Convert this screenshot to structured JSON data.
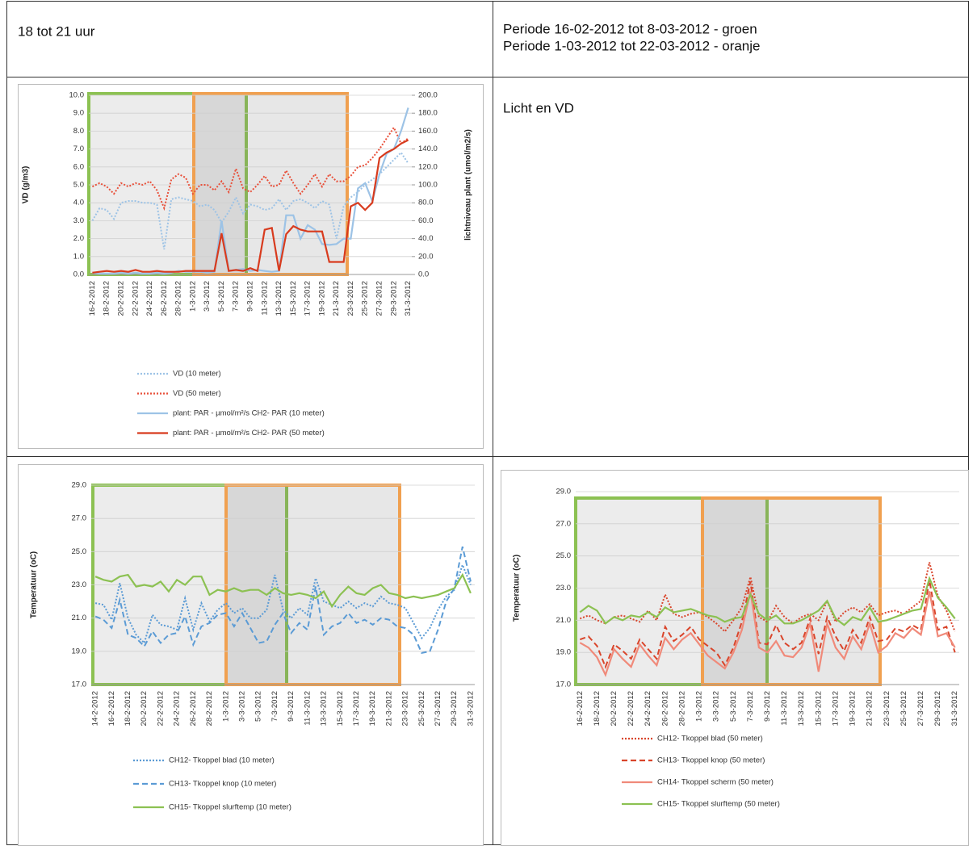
{
  "table": {
    "time": "18 tot 21 uur",
    "periods": [
      "Periode 16-02-2012 tot 8-03-2012 - groen",
      "Periode 1-03-2012 tot 22-03-2012 - oranje"
    ],
    "caption": "Licht en VD"
  },
  "chart_data": [
    {
      "type": "line",
      "ylabel": "VD (g/m3)",
      "y2label": "lichtniveau plant (umol/m2/s)",
      "grid": true,
      "categories": [
        "16-2-2012",
        null,
        "18-2-2012",
        null,
        "20-2-2012",
        null,
        "22-2-2012",
        null,
        "24-2-2012",
        null,
        "26-2-2012",
        null,
        "28-2-2012",
        null,
        "1-3-2012",
        null,
        "3-3-2012",
        null,
        "5-3-2012",
        null,
        "7-3-2012",
        null,
        "9-3-2012",
        null,
        "11-3-2012",
        null,
        "13-3-2012",
        null,
        "15-3-2012",
        null,
        "17-3-2012",
        null,
        "19-3-2012",
        null,
        "21-3-2012",
        null,
        "23-3-2012",
        null,
        "25-3-2012",
        null,
        "27-3-2012",
        null,
        "29-3-2012",
        null,
        "31-3-2012"
      ],
      "ylim": [
        0,
        10
      ],
      "yticks": [
        {
          "value": 0,
          "label": "0.0"
        },
        {
          "value": 1,
          "label": "1.0"
        },
        {
          "value": 2,
          "label": "2.0"
        },
        {
          "value": 3,
          "label": "3.0"
        },
        {
          "value": 4,
          "label": "4.0"
        },
        {
          "value": 5,
          "label": "5.0"
        },
        {
          "value": 6,
          "label": "6.0"
        },
        {
          "value": 7,
          "label": "7.0"
        },
        {
          "value": 8,
          "label": "8.0"
        },
        {
          "value": 9,
          "label": "9.0"
        },
        {
          "value": 10,
          "label": "10.0"
        }
      ],
      "y2lim": [
        0,
        200
      ],
      "y2ticks": [
        {
          "value": 0,
          "label": "0.0"
        },
        {
          "value": 20,
          "label": "20.0"
        },
        {
          "value": 40,
          "label": "40.0"
        },
        {
          "value": 60,
          "label": "60.0"
        },
        {
          "value": 80,
          "label": "80.0"
        },
        {
          "value": 100,
          "label": "100.0"
        },
        {
          "value": 120,
          "label": "120.0"
        },
        {
          "value": 140,
          "label": "140.0"
        },
        {
          "value": 160,
          "label": "160.0"
        },
        {
          "value": 180,
          "label": "180.0"
        },
        {
          "value": 200,
          "label": "200.0"
        }
      ],
      "series": [
        {
          "name": "VD (10 meter)",
          "color": "#9dc3e6",
          "style": "dotted",
          "values": [
            3.0,
            3.7,
            3.6,
            3.1,
            4.0,
            4.1,
            4.1,
            4.0,
            4.0,
            3.9,
            1.4,
            4.2,
            4.3,
            4.2,
            4.1,
            3.8,
            3.9,
            3.6,
            2.9,
            3.5,
            4.3,
            3.4,
            3.9,
            3.8,
            3.6,
            3.7,
            4.2,
            3.6,
            4.1,
            4.2,
            4.0,
            3.7,
            4.1,
            3.9,
            2.0,
            3.8,
            4.3,
            4.6,
            5.0,
            5.3,
            5.6,
            6.0,
            6.4,
            6.8,
            6.2
          ]
        },
        {
          "name": "VD (50 meter)",
          "color": "#e8503a",
          "style": "dotted",
          "values": [
            4.9,
            5.1,
            4.9,
            4.5,
            5.1,
            4.9,
            5.1,
            5.0,
            5.2,
            4.7,
            3.7,
            5.3,
            5.6,
            5.4,
            4.5,
            5.0,
            5.0,
            4.7,
            5.2,
            4.6,
            5.9,
            4.8,
            4.6,
            5.0,
            5.5,
            4.9,
            5.0,
            5.8,
            5.1,
            4.5,
            5.0,
            5.6,
            4.9,
            5.6,
            5.2,
            5.2,
            5.5,
            6.0,
            6.1,
            6.5,
            7.0,
            7.6,
            8.2,
            7.3,
            7.6
          ]
        },
        {
          "name": "plant: PAR - µmol/m²/s CH2- PAR (10 meter)",
          "color": "#9dc3e6",
          "style": "solid",
          "axis": "y2",
          "values": [
            2,
            1,
            1,
            1,
            2,
            1,
            2,
            1,
            1,
            2,
            1,
            2,
            4,
            3,
            3,
            3,
            2,
            3,
            60,
            4,
            5,
            6,
            4,
            5,
            4,
            3,
            4,
            66,
            66,
            40,
            55,
            50,
            34,
            33,
            34,
            40,
            40,
            96,
            102,
            82,
            112,
            135,
            140,
            160,
            186
          ]
        },
        {
          "name": "plant: PAR - µmol/m²/s CH2- PAR (50 meter)",
          "color": "#d83b1e",
          "style": "solid",
          "axis": "y2",
          "values": [
            2,
            3,
            4,
            3,
            4,
            3,
            5,
            3,
            3,
            4,
            3,
            3,
            3,
            4,
            4,
            4,
            4,
            4,
            46,
            4,
            5,
            4,
            7,
            4,
            50,
            52,
            4,
            45,
            54,
            50,
            48,
            48,
            48,
            14,
            14,
            14,
            76,
            80,
            72,
            80,
            130,
            136,
            140,
            146,
            150
          ]
        }
      ]
    },
    {
      "type": "line",
      "ylabel": "Temperatuur (oC)",
      "grid": true,
      "categories": [
        "14-2-2012",
        null,
        "16-2-2012",
        null,
        "18-2-2012",
        null,
        "20-2-2012",
        null,
        "22-2-2012",
        null,
        "24-2-2012",
        null,
        "26-2-2012",
        null,
        "28-2-2012",
        null,
        "1-3-2012",
        null,
        "3-3-2012",
        null,
        "5-3-2012",
        null,
        "7-3-2012",
        null,
        "9-3-2012",
        null,
        "11-3-2012",
        null,
        "13-3-2012",
        null,
        "15-3-2012",
        null,
        "17-3-2012",
        null,
        "19-3-2012",
        null,
        "21-3-2012",
        null,
        "23-3-2012",
        null,
        "25-3-2012",
        null,
        "27-3-2012",
        null,
        "29-3-2012",
        null,
        "31-3-2012"
      ],
      "ylim": [
        17,
        29
      ],
      "yticks": [
        {
          "value": 17,
          "label": "17.0"
        },
        {
          "value": 19,
          "label": "19.0"
        },
        {
          "value": 21,
          "label": "21.0"
        },
        {
          "value": 23,
          "label": "23.0"
        },
        {
          "value": 25,
          "label": "25.0"
        },
        {
          "value": 27,
          "label": "27.0"
        },
        {
          "value": 29,
          "label": "29.0"
        }
      ],
      "series": [
        {
          "name": "CH12- Tkoppel blad (10 meter)",
          "color": "#5b9bd5",
          "style": "dotted",
          "values": [
            21.9,
            21.8,
            20.9,
            23.1,
            21.0,
            20.0,
            19.5,
            21.2,
            20.6,
            20.5,
            20.3,
            22.2,
            20.3,
            21.9,
            20.8,
            21.5,
            21.9,
            21.3,
            21.6,
            21.0,
            21.0,
            21.5,
            23.6,
            21.5,
            21.0,
            21.6,
            21.2,
            23.4,
            22.0,
            21.8,
            21.6,
            22.0,
            21.6,
            21.9,
            21.7,
            22.3,
            21.9,
            21.8,
            21.6,
            20.7,
            19.8,
            20.4,
            21.5,
            22.3,
            22.7,
            24.2,
            23.0
          ]
        },
        {
          "name": "CH13- Tkoppel knop (10 meter)",
          "color": "#5b9bd5",
          "style": "dashed",
          "values": [
            21.1,
            20.9,
            20.4,
            22.1,
            20.0,
            19.8,
            19.3,
            20.2,
            19.5,
            20.0,
            20.1,
            21.1,
            19.4,
            20.5,
            20.7,
            21.2,
            21.3,
            20.5,
            21.3,
            20.4,
            19.5,
            19.6,
            20.6,
            21.3,
            20.1,
            20.7,
            20.3,
            22.9,
            20.0,
            20.5,
            20.7,
            21.3,
            20.7,
            20.9,
            20.6,
            21.0,
            20.9,
            20.5,
            20.4,
            20.0,
            18.9,
            19.0,
            20.3,
            22.0,
            22.8,
            25.3,
            23.2
          ]
        },
        {
          "name": "CH15- Tkoppel slurftemp (10 meter)",
          "color": "#8cc152",
          "style": "solid",
          "values": [
            23.5,
            23.3,
            23.2,
            23.5,
            23.6,
            22.9,
            23.0,
            22.9,
            23.2,
            22.6,
            23.3,
            23.0,
            23.5,
            23.5,
            22.4,
            22.7,
            22.6,
            22.8,
            22.6,
            22.7,
            22.7,
            22.4,
            22.8,
            22.5,
            22.4,
            22.5,
            22.4,
            22.2,
            22.6,
            21.7,
            22.4,
            22.9,
            22.5,
            22.4,
            22.8,
            23.0,
            22.5,
            22.4,
            22.2,
            22.3,
            22.2,
            22.3,
            22.4,
            22.6,
            22.8,
            23.6,
            22.5
          ]
        }
      ]
    },
    {
      "type": "line",
      "ylabel": "Temperatuur (oC)",
      "grid": true,
      "categories": [
        "16-2-2012",
        null,
        "18-2-2012",
        null,
        "20-2-2012",
        null,
        "22-2-2012",
        null,
        "24-2-2012",
        null,
        "26-2-2012",
        null,
        "28-2-2012",
        null,
        "1-3-2012",
        null,
        "3-3-2012",
        null,
        "5-3-2012",
        null,
        "7-3-2012",
        null,
        "9-3-2012",
        null,
        "11-3-2012",
        null,
        "13-3-2012",
        null,
        "15-3-2012",
        null,
        "17-3-2012",
        null,
        "19-3-2012",
        null,
        "21-3-2012",
        null,
        "23-3-2012",
        null,
        "25-3-2012",
        null,
        "27-3-2012",
        null,
        "29-3-2012",
        null,
        "31-3-2012"
      ],
      "ylim": [
        17,
        29
      ],
      "yticks": [
        {
          "value": 17,
          "label": "17.0"
        },
        {
          "value": 19,
          "label": "19.0"
        },
        {
          "value": 21,
          "label": "21.0"
        },
        {
          "value": 23,
          "label": "23.0"
        },
        {
          "value": 25,
          "label": "25.0"
        },
        {
          "value": 27,
          "label": "27.0"
        },
        {
          "value": 29,
          "label": "29.0"
        }
      ],
      "series": [
        {
          "name": "CH12- Tkoppel blad (50 meter)",
          "color": "#d9452b",
          "style": "dotted",
          "values": [
            21.1,
            21.3,
            21.0,
            20.8,
            21.2,
            21.3,
            21.1,
            20.9,
            21.6,
            21.0,
            22.6,
            21.4,
            21.2,
            21.4,
            21.5,
            21.2,
            20.8,
            20.3,
            21.0,
            21.8,
            23.7,
            21.2,
            20.9,
            21.9,
            21.2,
            20.8,
            21.2,
            21.4,
            21.0,
            22.2,
            20.9,
            21.5,
            21.8,
            21.5,
            22.0,
            21.3,
            21.5,
            21.6,
            21.4,
            21.8,
            22.2,
            24.6,
            22.5,
            21.6,
            20.3
          ]
        },
        {
          "name": "CH13- Tkoppel knop (50 meter)",
          "color": "#d9452b",
          "style": "dashed",
          "values": [
            19.8,
            20.0,
            19.4,
            18.1,
            19.5,
            19.1,
            18.6,
            19.8,
            19.2,
            18.6,
            20.6,
            19.7,
            20.1,
            20.6,
            19.8,
            19.4,
            19.0,
            18.2,
            19.3,
            20.9,
            23.4,
            19.6,
            19.5,
            20.7,
            19.6,
            19.2,
            19.6,
            21.1,
            18.9,
            21.2,
            20.0,
            19.1,
            20.4,
            19.6,
            21.2,
            19.7,
            19.8,
            20.5,
            20.3,
            20.7,
            20.4,
            23.5,
            20.4,
            20.6,
            19.0
          ]
        },
        {
          "name": "CH14- Tkoppel scherm (50 meter)",
          "color": "#f08a7a",
          "style": "solid",
          "values": [
            19.6,
            19.3,
            18.7,
            17.6,
            19.2,
            18.6,
            18.1,
            19.5,
            18.8,
            18.2,
            19.9,
            19.2,
            19.8,
            20.2,
            19.5,
            18.8,
            18.4,
            18.0,
            19.0,
            20.4,
            22.8,
            19.3,
            19.0,
            19.7,
            18.8,
            18.7,
            19.3,
            20.8,
            17.8,
            20.8,
            19.3,
            18.6,
            20.0,
            19.2,
            20.8,
            19.0,
            19.4,
            20.2,
            19.9,
            20.5,
            20.1,
            22.8,
            20.0,
            20.2,
            19.3
          ]
        },
        {
          "name": "CH15- Tkoppel slurftemp (50 meter)",
          "color": "#8cc152",
          "style": "solid",
          "values": [
            21.5,
            21.9,
            21.6,
            20.8,
            21.2,
            21.0,
            21.3,
            21.2,
            21.5,
            21.2,
            21.8,
            21.5,
            21.6,
            21.7,
            21.5,
            21.3,
            21.2,
            20.9,
            21.1,
            21.2,
            22.6,
            21.4,
            21.0,
            21.3,
            20.8,
            20.8,
            21.0,
            21.3,
            21.6,
            22.2,
            21.1,
            20.7,
            21.2,
            21.0,
            21.8,
            20.9,
            21.0,
            21.2,
            21.4,
            21.6,
            21.7,
            23.6,
            22.4,
            21.8,
            21.1
          ]
        }
      ]
    }
  ]
}
